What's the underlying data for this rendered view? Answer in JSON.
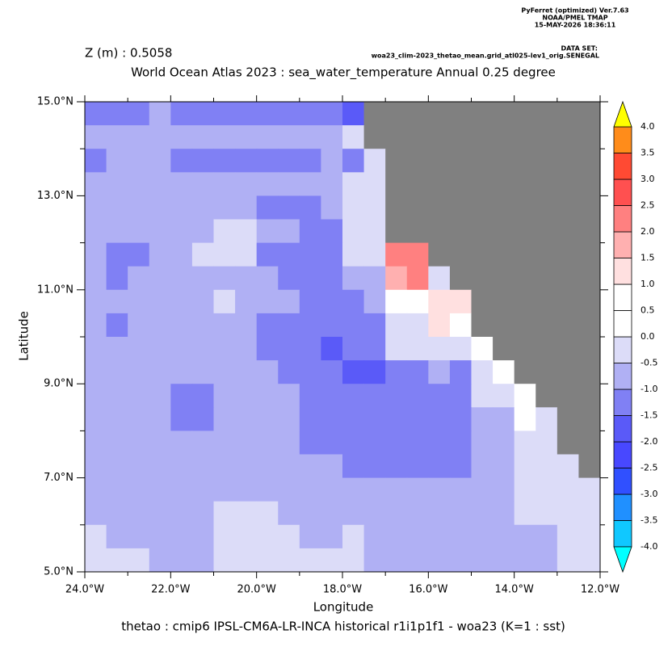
{
  "header": {
    "software": "PyFerret (optimized) Ver.7.63",
    "org": "NOAA/PMEL TMAP",
    "date": "15-MAY-2026 18:36:11",
    "dataset_label": "DATA SET:",
    "dataset": "woa23_clim-2023_thetao_mean.grid_atl025-lev1_orig.SENEGAL"
  },
  "chart_data": {
    "type": "heatmap",
    "subtitle": "Z (m) : 0.5058",
    "title": "World Ocean Atlas 2023 : sea_water_temperature Annual  0.25 degree",
    "x_label": "Longitude",
    "y_label": "Latitude",
    "caption": "thetao : cmip6 IPSL-CM6A-LR-INCA historical r1i1p1f1 - woa23  (K=1 : sst)",
    "xlim": [
      -24,
      -12
    ],
    "ylim": [
      5,
      15
    ],
    "xticks": [
      {
        "value": -24,
        "label": "24.0°W"
      },
      {
        "value": -22,
        "label": "22.0°W"
      },
      {
        "value": -20,
        "label": "20.0°W"
      },
      {
        "value": -18,
        "label": "18.0°W"
      },
      {
        "value": -16,
        "label": "16.0°W"
      },
      {
        "value": -14,
        "label": "14.0°W"
      },
      {
        "value": -12,
        "label": "12.0°W"
      }
    ],
    "yticks": [
      {
        "value": 5,
        "label": "5.0°N"
      },
      {
        "value": 7,
        "label": "7.0°N"
      },
      {
        "value": 9,
        "label": "9.0°N"
      },
      {
        "value": 11,
        "label": "11.0°N"
      },
      {
        "value": 13,
        "label": "13.0°N"
      },
      {
        "value": 15,
        "label": "15.0°N"
      }
    ],
    "x": [
      -23.75,
      -23.25,
      -22.75,
      -22.25,
      -21.75,
      -21.25,
      -20.75,
      -20.25,
      -19.75,
      -19.25,
      -18.75,
      -18.25,
      -17.75,
      -17.25,
      -16.75,
      -16.25,
      -15.75,
      -15.25,
      -14.75,
      -14.25,
      -13.75,
      -13.25,
      -12.75,
      -12.25
    ],
    "y": [
      14.75,
      14.25,
      13.75,
      13.25,
      12.75,
      12.25,
      11.75,
      11.25,
      10.75,
      10.25,
      9.75,
      9.25,
      8.75,
      8.25,
      7.75,
      7.25,
      6.75,
      6.25,
      5.75,
      5.25
    ],
    "land_color": "#808080",
    "z": [
      [
        -1.2,
        -1.2,
        -1.2,
        -0.7,
        -1.2,
        -1.2,
        -1.2,
        -1.2,
        -1.2,
        -1.2,
        -1.2,
        -1.2,
        -1.7,
        null,
        null,
        null,
        null,
        null,
        null,
        null,
        null,
        null,
        null,
        null
      ],
      [
        -0.7,
        -0.7,
        -0.7,
        -0.7,
        -0.7,
        -0.7,
        -0.7,
        -0.7,
        -0.7,
        -0.7,
        -0.7,
        -0.7,
        -0.2,
        null,
        null,
        null,
        null,
        null,
        null,
        null,
        null,
        null,
        null,
        null
      ],
      [
        -1.2,
        -0.7,
        -0.7,
        -0.7,
        -1.2,
        -1.2,
        -1.2,
        -1.2,
        -1.2,
        -1.2,
        -1.2,
        -0.7,
        -1.2,
        -0.2,
        null,
        null,
        null,
        null,
        null,
        null,
        null,
        null,
        null,
        null
      ],
      [
        -0.7,
        -0.7,
        -0.7,
        -0.7,
        -0.7,
        -0.7,
        -0.7,
        -0.7,
        -0.7,
        -0.7,
        -0.7,
        -0.7,
        -0.2,
        -0.2,
        null,
        null,
        null,
        null,
        null,
        null,
        null,
        null,
        null,
        null
      ],
      [
        -0.7,
        -0.7,
        -0.7,
        -0.7,
        -0.7,
        -0.7,
        -0.7,
        -0.7,
        -1.2,
        -1.2,
        -1.2,
        -0.7,
        -0.2,
        -0.2,
        null,
        null,
        null,
        null,
        null,
        null,
        null,
        null,
        null,
        null
      ],
      [
        -0.7,
        -0.7,
        -0.7,
        -0.7,
        -0.7,
        -0.7,
        -0.2,
        -0.2,
        -0.7,
        -0.7,
        -1.2,
        -1.2,
        -0.2,
        -0.2,
        null,
        null,
        null,
        null,
        null,
        null,
        null,
        null,
        null,
        null
      ],
      [
        -0.7,
        -1.2,
        -1.2,
        -0.7,
        -0.7,
        -0.2,
        -0.2,
        -0.2,
        -1.2,
        -1.2,
        -1.2,
        -1.2,
        -0.2,
        -0.2,
        2.2,
        2.2,
        null,
        null,
        null,
        null,
        null,
        null,
        null,
        null
      ],
      [
        -0.7,
        -1.2,
        -0.7,
        -0.7,
        -0.7,
        -0.7,
        -0.7,
        -0.7,
        -0.7,
        -1.2,
        -1.2,
        -1.2,
        -0.7,
        -0.7,
        1.7,
        2.2,
        -0.2,
        null,
        null,
        null,
        null,
        null,
        null,
        null
      ],
      [
        -0.7,
        -0.7,
        -0.7,
        -0.7,
        -0.7,
        -0.7,
        -0.2,
        -0.7,
        -0.7,
        -0.7,
        -1.2,
        -1.2,
        -1.2,
        -0.7,
        0.7,
        0.7,
        1.2,
        1.2,
        null,
        null,
        null,
        null,
        null,
        null
      ],
      [
        -0.7,
        -1.2,
        -0.7,
        -0.7,
        -0.7,
        -0.7,
        -0.7,
        -0.7,
        -1.2,
        -1.2,
        -1.2,
        -1.2,
        -1.2,
        -1.2,
        -0.2,
        -0.2,
        1.2,
        0.7,
        null,
        null,
        null,
        null,
        null,
        null
      ],
      [
        -0.7,
        -0.7,
        -0.7,
        -0.7,
        -0.7,
        -0.7,
        -0.7,
        -0.7,
        -1.2,
        -1.2,
        -1.2,
        -1.7,
        -1.2,
        -1.2,
        -0.2,
        -0.2,
        -0.2,
        -0.2,
        0.7,
        null,
        null,
        null,
        null,
        null
      ],
      [
        -0.7,
        -0.7,
        -0.7,
        -0.7,
        -0.7,
        -0.7,
        -0.7,
        -0.7,
        -0.7,
        -1.2,
        -1.2,
        -1.2,
        -1.7,
        -1.7,
        -1.2,
        -1.2,
        -0.7,
        -1.2,
        -0.2,
        0.7,
        null,
        null,
        null,
        null
      ],
      [
        -0.7,
        -0.7,
        -0.7,
        -0.7,
        -1.2,
        -1.2,
        -0.7,
        -0.7,
        -0.7,
        -0.7,
        -1.2,
        -1.2,
        -1.2,
        -1.2,
        -1.2,
        -1.2,
        -1.2,
        -1.2,
        -0.2,
        -0.2,
        0.7,
        null,
        null,
        null
      ],
      [
        -0.7,
        -0.7,
        -0.7,
        -0.7,
        -1.2,
        -1.2,
        -0.7,
        -0.7,
        -0.7,
        -0.7,
        -1.2,
        -1.2,
        -1.2,
        -1.2,
        -1.2,
        -1.2,
        -1.2,
        -1.2,
        -0.7,
        -0.7,
        0.7,
        -0.2,
        null,
        null
      ],
      [
        -0.7,
        -0.7,
        -0.7,
        -0.7,
        -0.7,
        -0.7,
        -0.7,
        -0.7,
        -0.7,
        -0.7,
        -1.2,
        -1.2,
        -1.2,
        -1.2,
        -1.2,
        -1.2,
        -1.2,
        -1.2,
        -0.7,
        -0.7,
        -0.2,
        -0.2,
        null,
        null
      ],
      [
        -0.7,
        -0.7,
        -0.7,
        -0.7,
        -0.7,
        -0.7,
        -0.7,
        -0.7,
        -0.7,
        -0.7,
        -0.7,
        -0.7,
        -1.2,
        -1.2,
        -1.2,
        -1.2,
        -1.2,
        -1.2,
        -0.7,
        -0.7,
        -0.2,
        -0.2,
        -0.2,
        null
      ],
      [
        -0.7,
        -0.7,
        -0.7,
        -0.7,
        -0.7,
        -0.7,
        -0.7,
        -0.7,
        -0.7,
        -0.7,
        -0.7,
        -0.7,
        -0.7,
        -0.7,
        -0.7,
        -0.7,
        -0.7,
        -0.7,
        -0.7,
        -0.7,
        -0.2,
        -0.2,
        -0.2,
        -0.2
      ],
      [
        -0.7,
        -0.7,
        -0.7,
        -0.7,
        -0.7,
        -0.7,
        -0.2,
        -0.2,
        -0.2,
        -0.7,
        -0.7,
        -0.7,
        -0.7,
        -0.7,
        -0.7,
        -0.7,
        -0.7,
        -0.7,
        -0.7,
        -0.7,
        -0.2,
        -0.2,
        -0.2,
        -0.2
      ],
      [
        -0.2,
        -0.7,
        -0.7,
        -0.7,
        -0.7,
        -0.7,
        -0.2,
        -0.2,
        -0.2,
        -0.2,
        -0.7,
        -0.7,
        -0.2,
        -0.7,
        -0.7,
        -0.7,
        -0.7,
        -0.7,
        -0.7,
        -0.7,
        -0.7,
        -0.7,
        -0.2,
        -0.2
      ],
      [
        -0.2,
        -0.2,
        -0.2,
        -0.7,
        -0.7,
        -0.7,
        -0.2,
        -0.2,
        -0.2,
        -0.2,
        -0.2,
        -0.2,
        -0.2,
        -0.7,
        -0.7,
        -0.7,
        -0.7,
        -0.7,
        -0.7,
        -0.7,
        -0.7,
        -0.7,
        -0.2,
        -0.2
      ]
    ],
    "levels": [
      {
        "value": -4,
        "label": "-4.0"
      },
      {
        "value": -3.5,
        "label": "-3.5"
      },
      {
        "value": -3,
        "label": "-3.0"
      },
      {
        "value": -2.5,
        "label": "-2.5"
      },
      {
        "value": -2,
        "label": "-2.0"
      },
      {
        "value": -1.5,
        "label": "-1.5"
      },
      {
        "value": -1,
        "label": "-1.0"
      },
      {
        "value": -0.5,
        "label": "-0.5"
      },
      {
        "value": 0,
        "label": "0.0"
      },
      {
        "value": 0.5,
        "label": "0.5"
      },
      {
        "value": 1,
        "label": "1.0"
      },
      {
        "value": 1.5,
        "label": "1.5"
      },
      {
        "value": 2,
        "label": "2.0"
      },
      {
        "value": 2.5,
        "label": "2.5"
      },
      {
        "value": 3,
        "label": "3.0"
      },
      {
        "value": 3.5,
        "label": "3.5"
      },
      {
        "value": 4,
        "label": "4.0"
      }
    ],
    "colors": [
      "#00ffff",
      "#10c8ff",
      "#2090ff",
      "#3050ff",
      "#4848ff",
      "#5a5af8",
      "#8080f4",
      "#b0b0f4",
      "#dcdcf8",
      "#ffffff",
      "#ffffff",
      "#ffe0e0",
      "#ffb0b0",
      "#ff8080",
      "#ff5050",
      "#ff4a33",
      "#ff8c1a",
      "#ffc000",
      "#ffff00"
    ]
  }
}
